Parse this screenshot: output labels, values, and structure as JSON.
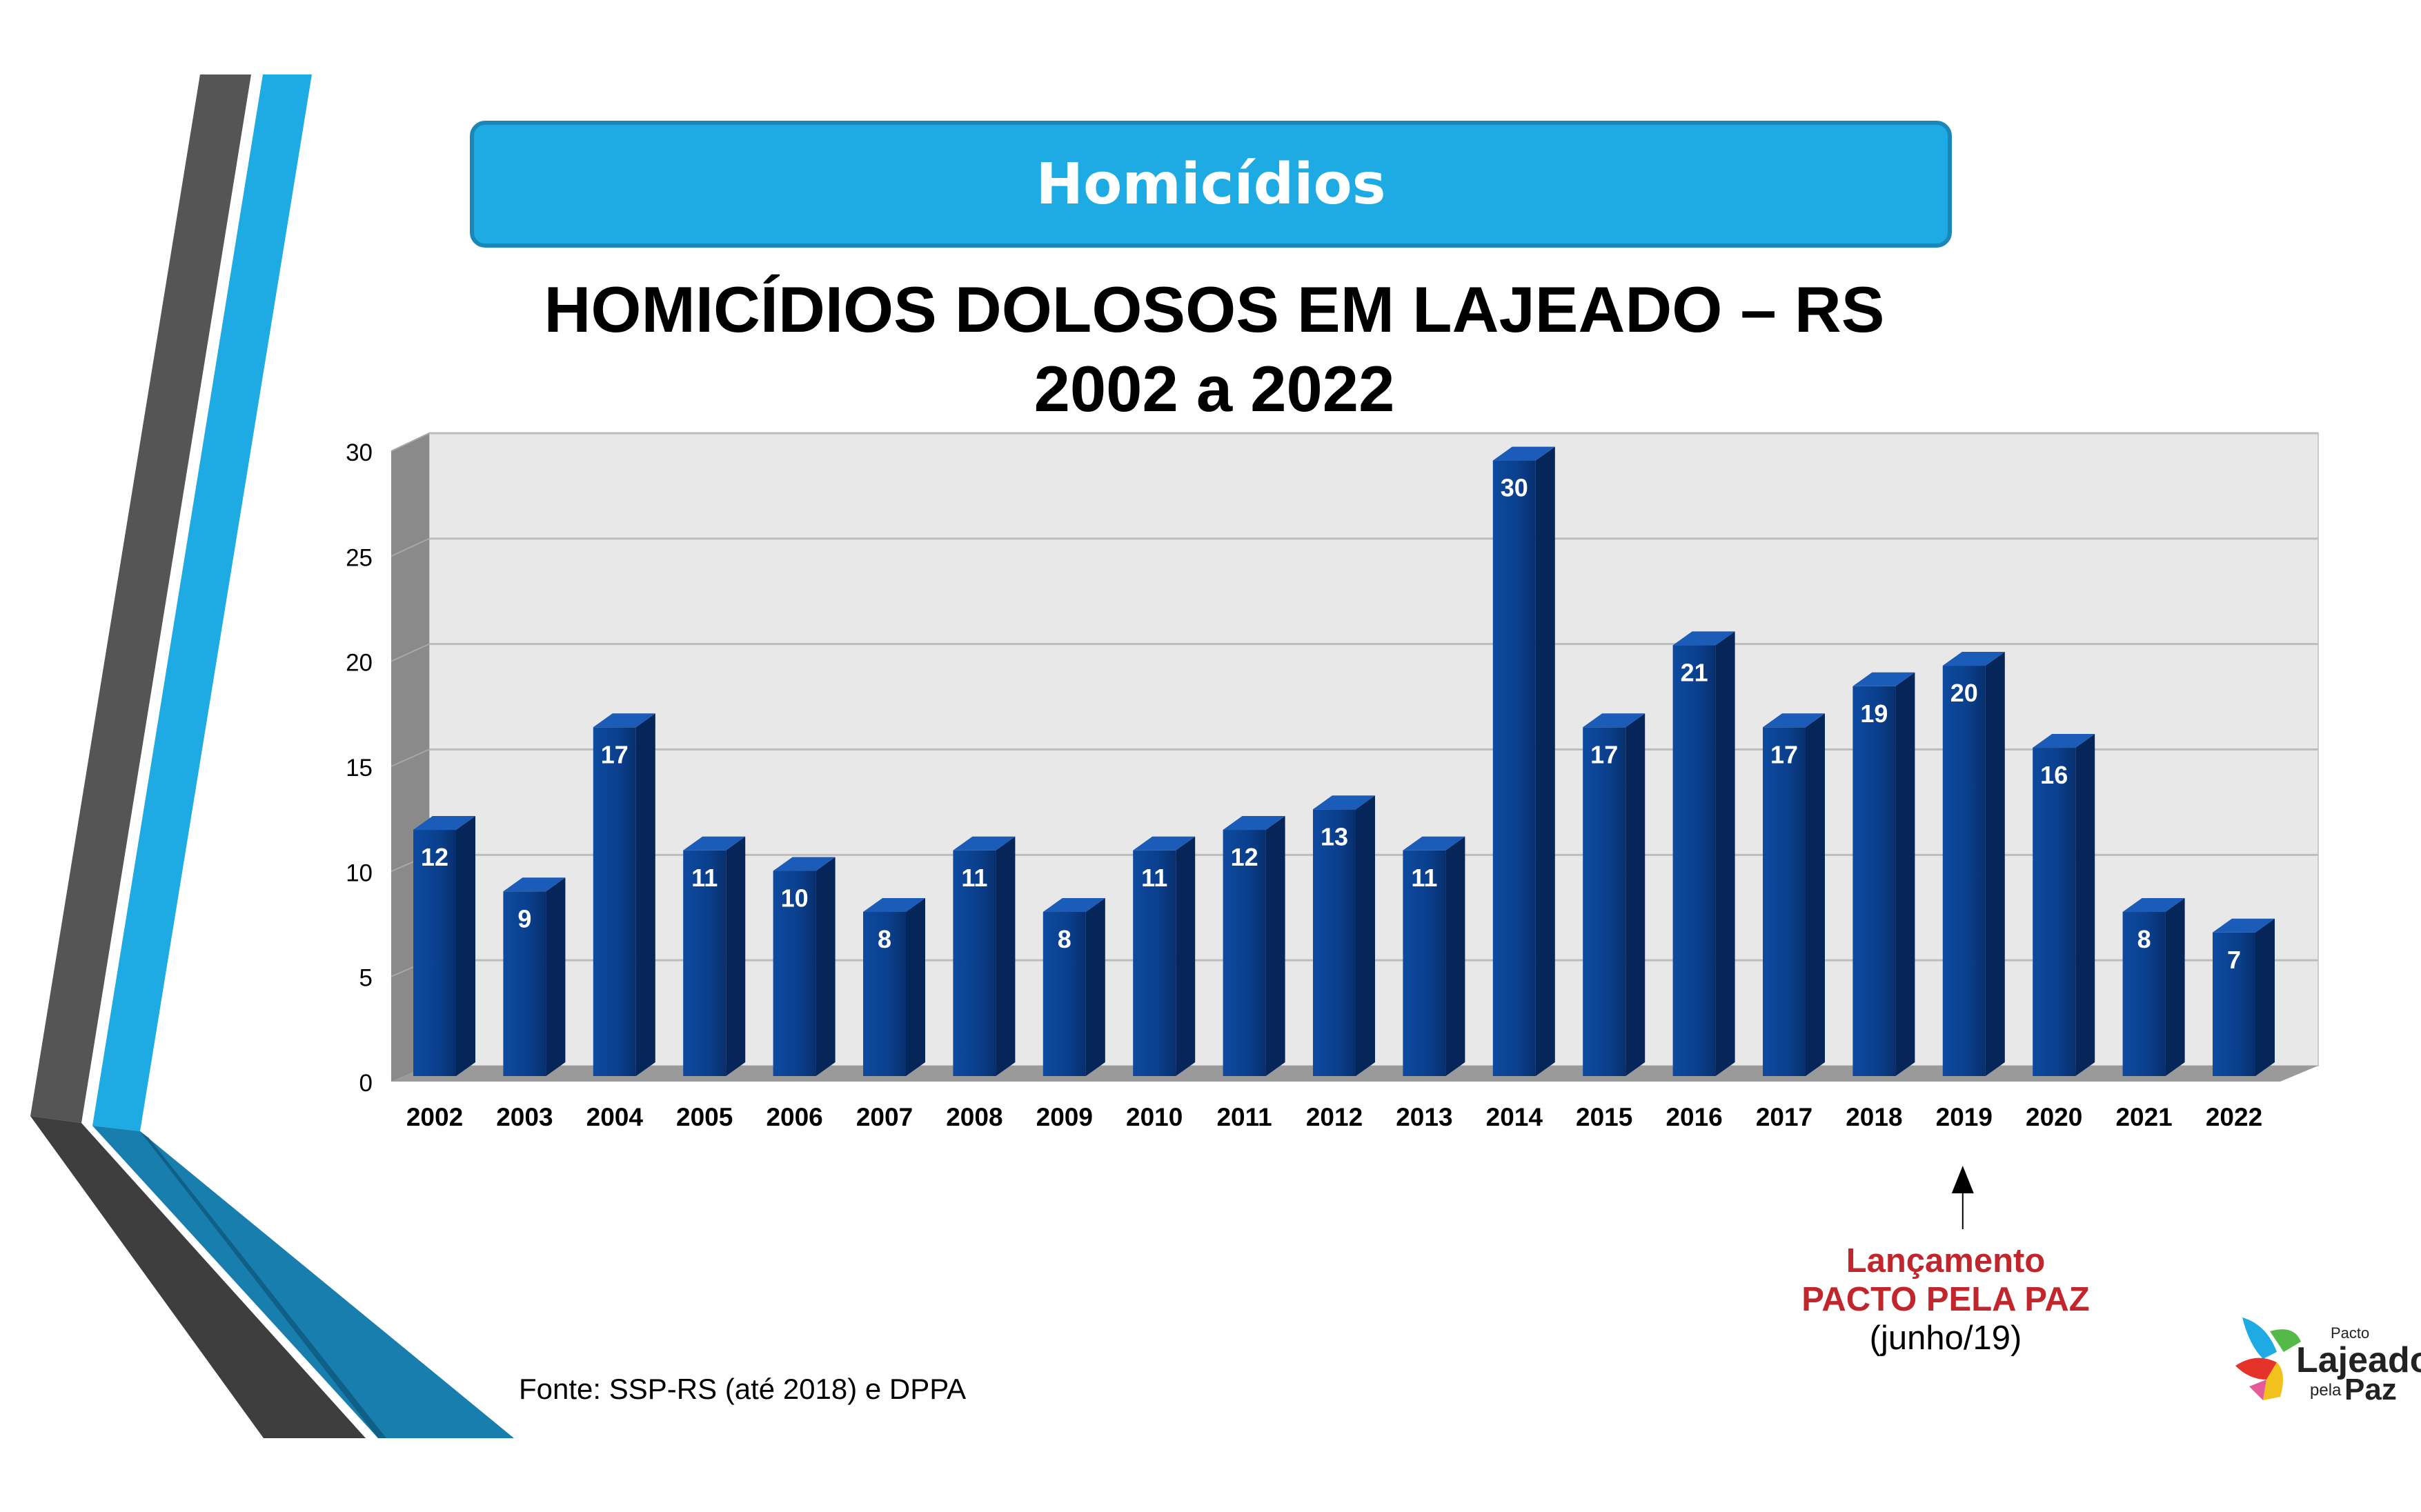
{
  "banner": {
    "title": "Homicídios"
  },
  "heading": {
    "line1": "HOMICÍDIOS DOLOSOS EM LAJEADO – RS",
    "line2": "2002 a 2022"
  },
  "annotation": {
    "line1": "Lançamento",
    "line2": "PACTO PELA PAZ",
    "line3": "(junho/19)",
    "target": "2019"
  },
  "source": "Fonte: SSP-RS (até 2018) e DPPA",
  "logo": {
    "small": "Pacto",
    "main": "Lajeado",
    "pela": "pela",
    "paz": "Paz"
  },
  "colors": {
    "banner": "#1eaae2",
    "bar": "#0a3b85",
    "plot_bg": "#e8e8e8",
    "annotation": "#c0262b",
    "deco_dark": "#555555",
    "deco_blue": "#1eaae2"
  },
  "chart_data": {
    "type": "bar",
    "title": "",
    "xlabel": "",
    "ylabel": "",
    "ylim": [
      0,
      30
    ],
    "yticks": [
      0,
      5,
      10,
      15,
      20,
      25,
      30
    ],
    "grid": true,
    "categories": [
      "2002",
      "2003",
      "2004",
      "2005",
      "2006",
      "2007",
      "2008",
      "2009",
      "2010",
      "2011",
      "2012",
      "2013",
      "2014",
      "2015",
      "2016",
      "2017",
      "2018",
      "2019",
      "2020",
      "2021",
      "2022"
    ],
    "values": [
      12,
      9,
      17,
      11,
      10,
      8,
      11,
      8,
      11,
      12,
      13,
      11,
      30,
      17,
      21,
      17,
      19,
      20,
      16,
      8,
      7
    ]
  }
}
